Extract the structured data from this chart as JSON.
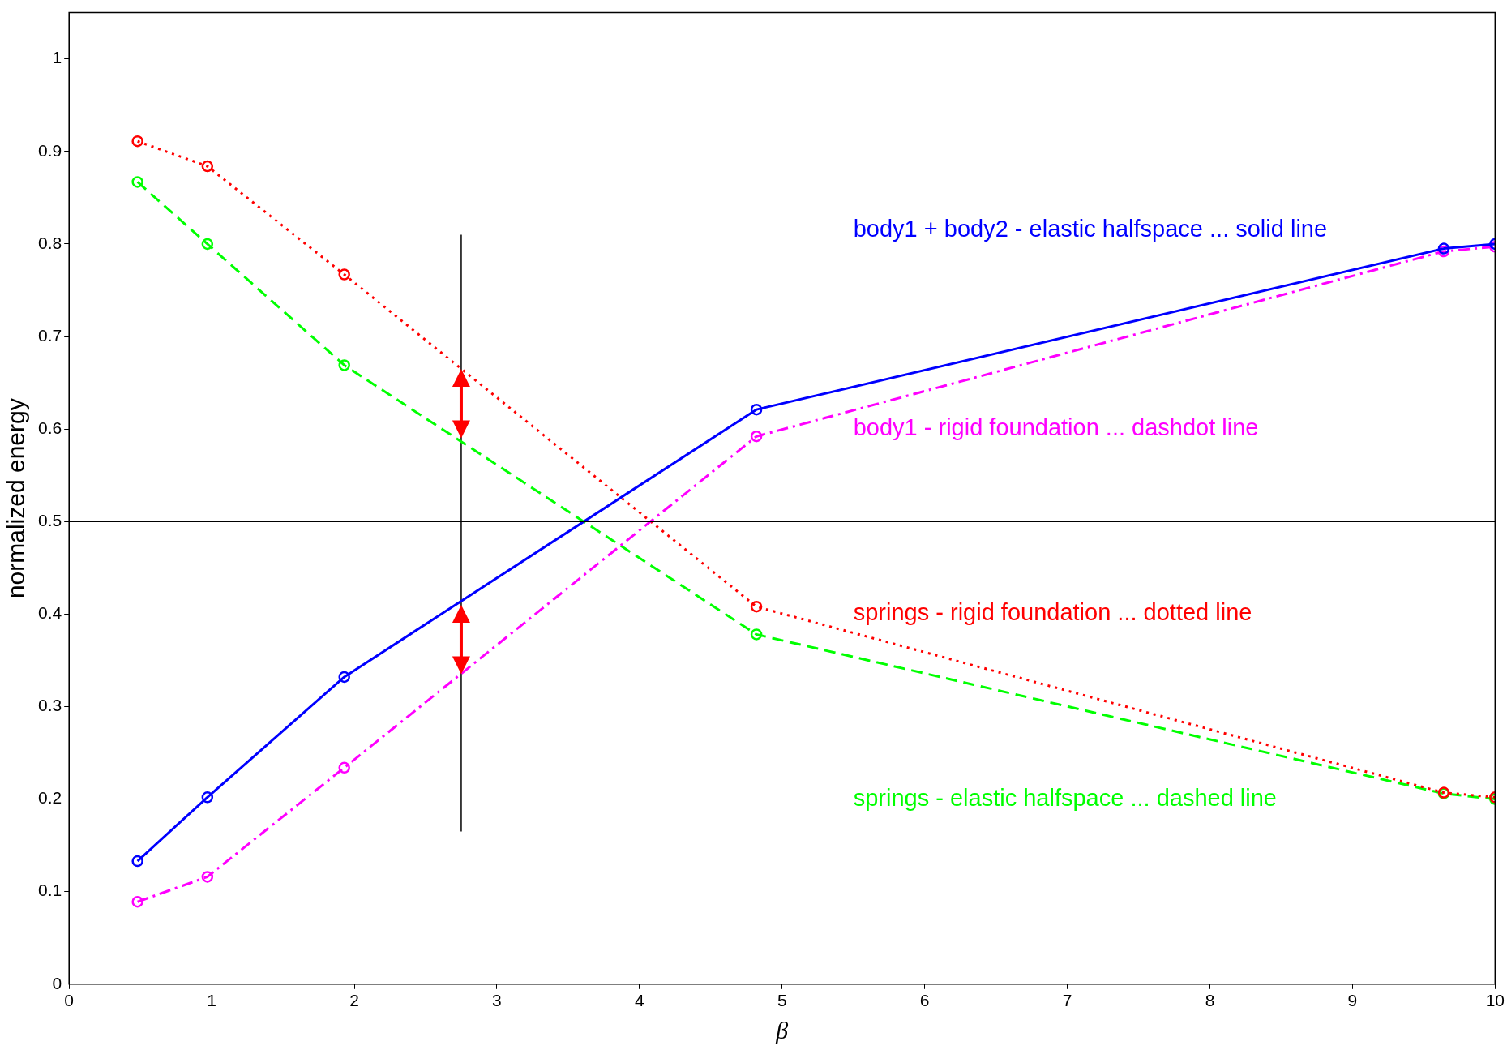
{
  "chart_data": {
    "type": "line",
    "xlabel": "β",
    "ylabel": "normalized energy",
    "xlim": [
      0,
      10
    ],
    "xticks": [
      0,
      1,
      2,
      3,
      4,
      5,
      6,
      7,
      8,
      9,
      10
    ],
    "ylim": [
      0,
      1.05
    ],
    "yticks": [
      0,
      0.1,
      0.2,
      0.3,
      0.4,
      0.5,
      0.6,
      0.7,
      0.8,
      0.9,
      1
    ],
    "x": [
      0.48,
      0.97,
      1.93,
      4.82,
      9.64,
      10
    ],
    "marker": "circle",
    "grid": false,
    "legend": false,
    "series": [
      {
        "name": "body1 + body2 - elastic halfspace ... solid line",
        "color": "#0000ff",
        "line_style": "solid",
        "values": [
          0.133,
          0.202,
          0.332,
          0.621,
          0.795,
          0.8
        ]
      },
      {
        "name": "body1 - rigid foundation ... dashdot line",
        "color": "#ff00ff",
        "line_style": "dashdot",
        "values": [
          0.089,
          0.116,
          0.234,
          0.592,
          0.792,
          0.797
        ]
      },
      {
        "name": "springs - rigid foundation ... dotted line",
        "color": "#ff0000",
        "line_style": "dotted",
        "values": [
          0.911,
          0.884,
          0.767,
          0.408,
          0.207,
          0.202
        ]
      },
      {
        "name": "springs - elastic halfspace ... dashed line",
        "color": "#00ff00",
        "line_style": "dashed",
        "values": [
          0.867,
          0.8,
          0.669,
          0.378,
          0.206,
          0.2
        ]
      },
      {
        "color": "#000000",
        "line_style": "solid",
        "marker": "none",
        "x": [
          2.75,
          2.75
        ],
        "values": [
          0.165,
          0.81
        ]
      }
    ],
    "ref_lines": [
      {
        "axis": "y",
        "value": 0.5,
        "color": "#000000"
      }
    ]
  }
}
